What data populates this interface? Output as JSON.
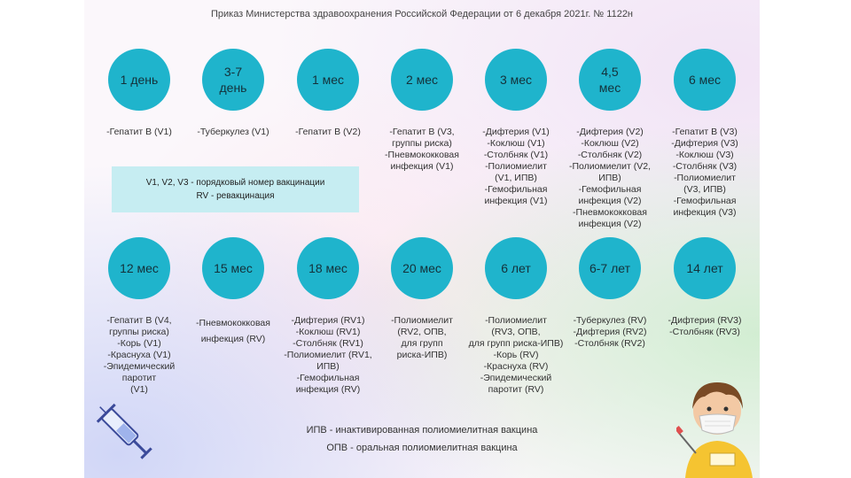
{
  "title": "Приказ Министерства здравоохранения Российской Федерации от 6 декабря 2021г. № 1122н",
  "row1": [
    {
      "label": "1 день",
      "desc": "-Гепатит В (V1)"
    },
    {
      "label": "3-7\nдень",
      "desc": "-Туберкулез (V1)"
    },
    {
      "label": "1 мес",
      "desc": "-Гепатит В (V2)"
    },
    {
      "label": "2 мес",
      "desc": "-Гепатит В (V3,\nгруппы риска)\n-Пневмококковая\nинфекция (V1)"
    },
    {
      "label": "3 мес",
      "desc": "-Дифтерия (V1)\n-Коклюш (V1)\n-Столбняк (V1)\n-Полиомиелит\n(V1, ИПВ)\n-Гемофильная\nинфекция (V1)"
    },
    {
      "label": "4,5\nмес",
      "desc": "-Дифтерия (V2)\n-Коклюш (V2)\n-Столбняк (V2)\n-Полиомиелит (V2, ИПВ)\n-Гемофильная\nинфекция (V2)\n-Пневмококковая\nинфекция (V2)"
    },
    {
      "label": "6 мес",
      "desc": "-Гепатит В (V3)\n-Дифтерия (V3)\n-Коклюш (V3)\n-Столбняк (V3)\n-Полиомиелит\n(V3, ИПВ)\n-Гемофильная\nинфекция (V3)"
    }
  ],
  "row2": [
    {
      "label": "12 мес",
      "desc": "-Гепатит В (V4,\nгруппы риска)\n-Корь (V1)\n-Краснуха (V1)\n-Эпидемический паротит\n(V1)"
    },
    {
      "label": "15 мес",
      "desc": "-Пневмококковая\nинфекция (RV)"
    },
    {
      "label": "18 мес",
      "desc": "-Дифтерия (RV1)\n-Коклюш (RV1)\n-Столбняк (RV1)\n-Полиомиелит (RV1, ИПВ)\n-Гемофильная\nинфекция (RV)"
    },
    {
      "label": "20 мес",
      "desc": "-Полиомиелит\n(RV2, ОПВ,\nдля групп\nриска-ИПВ)"
    },
    {
      "label": "6 лет",
      "desc": "-Полиомиелит\n(RV3, ОПВ,\nдля групп риска-ИПВ)\n-Корь (RV)\n-Краснуха (RV)\n-Эпидемический\nпаротит (RV)"
    },
    {
      "label": "6-7 лет",
      "desc": "-Туберкулез (RV)\n-Дифтерия (RV2)\n-Столбняк (RV2)"
    },
    {
      "label": "14 лет",
      "desc": "-Дифтерия (RV3)\n-Столбняк (RV3)"
    }
  ],
  "legend": {
    "line1": "V1, V2, V3 - порядковый номер вакцинации",
    "line2": "RV - ревакцинация"
  },
  "notes": {
    "ipv": "ИПВ - инактивированная полиомиелитная вакцина",
    "opv": "ОПВ - оральная полиомиелитная вакцина"
  },
  "illustrations": [
    "syringe-icon",
    "child-in-mask-illustration"
  ]
}
